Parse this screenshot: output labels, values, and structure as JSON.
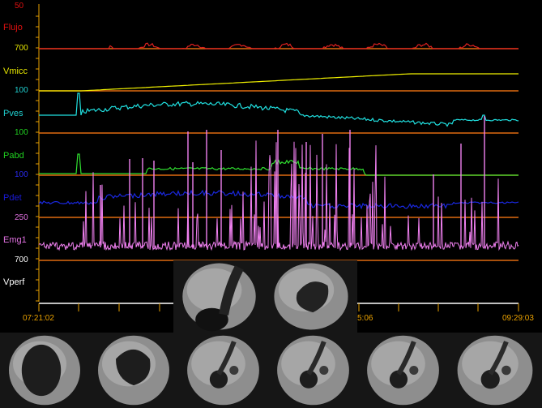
{
  "channels": [
    {
      "id": "flujo",
      "label": "Flujo",
      "label_color": "#e01010",
      "scale": "50",
      "scale_color": "#e01010",
      "trace_color": "#e02020"
    },
    {
      "id": "vmicc",
      "label": "Vmicc",
      "label_color": "#e8e800",
      "scale": "700",
      "scale_color": "#e8e800",
      "trace_color": "#f0f000"
    },
    {
      "id": "pves",
      "label": "Pves",
      "label_color": "#20d0d0",
      "scale": "100",
      "scale_color": "#20d0d0",
      "trace_color": "#20e0e0"
    },
    {
      "id": "pabd",
      "label": "Pabd",
      "label_color": "#20d020",
      "scale": "100",
      "scale_color": "#20d020",
      "trace_color": "#30e030"
    },
    {
      "id": "pdet",
      "label": "Pdet",
      "label_color": "#1a1ad8",
      "scale": "100",
      "scale_color": "#2a2af0",
      "trace_color": "#1a28e0"
    },
    {
      "id": "emg1",
      "label": "Emg1",
      "label_color": "#e070e0",
      "scale": "250",
      "scale_color": "#e070e0",
      "trace_color": "#f080f0"
    },
    {
      "id": "vperf",
      "label": "Vperf",
      "label_color": "#ffffff",
      "scale": "700",
      "scale_color": "#ffffff",
      "trace_color": "#ffffff"
    }
  ],
  "time_axis": {
    "start": "07:21:02",
    "mid_fragment": "5:06",
    "end": "09:29:03",
    "color": "#e8a000"
  },
  "colors": {
    "background": "#000000",
    "divider": "#e06a10",
    "axis": "#e8a000"
  },
  "fluoro_frames": {
    "top": [
      {
        "name": "fluoro-frame-top-1"
      },
      {
        "name": "fluoro-frame-top-2"
      }
    ],
    "bottom": [
      {
        "name": "fluoro-frame-bottom-1"
      },
      {
        "name": "fluoro-frame-bottom-2"
      },
      {
        "name": "fluoro-frame-bottom-3"
      },
      {
        "name": "fluoro-frame-bottom-4"
      },
      {
        "name": "fluoro-frame-bottom-5"
      },
      {
        "name": "fluoro-frame-bottom-6"
      }
    ]
  }
}
